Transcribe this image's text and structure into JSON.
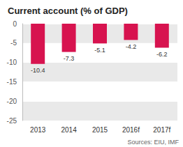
{
  "chart_data": {
    "type": "bar",
    "title": "Current account (% of GDP)",
    "categories": [
      "2013",
      "2014",
      "2015",
      "2016f",
      "2017f"
    ],
    "values": [
      -10.4,
      -7.3,
      -5.1,
      -4.2,
      -6.2
    ],
    "color": "#d7134f",
    "ylim": [
      -25,
      0
    ],
    "yticks": [
      -25,
      -20,
      -15,
      -10,
      -5,
      0
    ],
    "grid": true,
    "data_labels": true,
    "source": "Sources: EIU, IMF"
  }
}
